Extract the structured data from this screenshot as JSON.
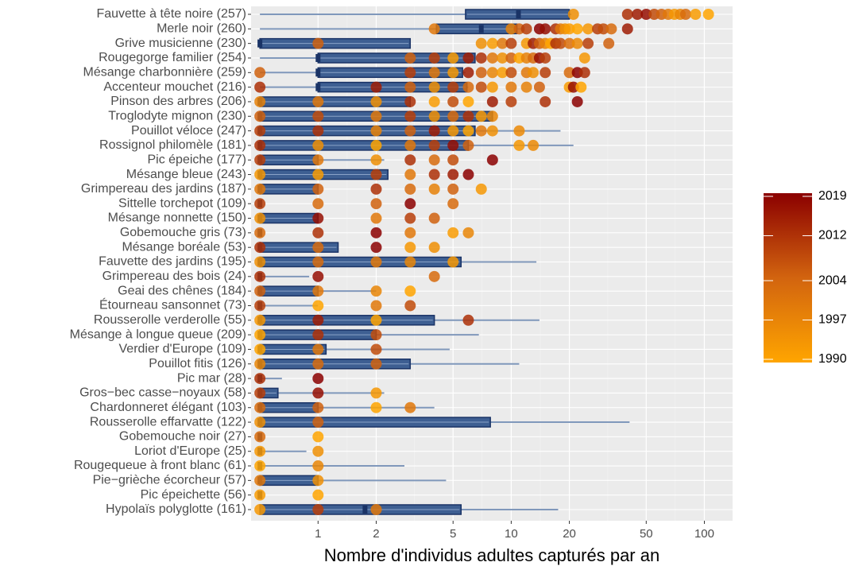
{
  "chart_data": {
    "type": "boxplot",
    "xlabel": "Nombre d'individus adultes capturés par an",
    "log_x": true,
    "grid": true,
    "xlim": [
      0.45,
      140
    ],
    "xticks": [
      1,
      2,
      5,
      10,
      20,
      50,
      100
    ],
    "colorbar": {
      "lim": [
        1990,
        2019
      ],
      "ticks": [
        1990,
        1997,
        2004,
        2012,
        2019
      ],
      "colors": [
        "#ffa500",
        "#d2640f",
        "#8b0000"
      ]
    },
    "box_color": "#3e5f92",
    "box_edge": "#1a3366",
    "whisker_color": "#8098bb",
    "categories": [
      "Fauvette à tête noire (257)",
      "Merle noir (260)",
      "Grive musicienne (230)",
      "Rougegorge familier (254)",
      "Mésange charbonnière (259)",
      "Accenteur mouchet (216)",
      "Pinson des arbres (206)",
      "Troglodyte mignon (230)",
      "Pouillot véloce (247)",
      "Rossignol philomèle (181)",
      "Pic épeiche (177)",
      "Mésange bleue (243)",
      "Grimpereau des jardins (187)",
      "Sittelle torchepot (109)",
      "Mésange nonnette (150)",
      "Gobemouche gris (73)",
      "Mésange boréale (53)",
      "Fauvette des jardins (195)",
      "Grimpereau des bois (24)",
      "Geai des chênes (184)",
      "Étourneau sansonnet (73)",
      "Rousserolle verderolle (55)",
      "Mésange à longue queue (209)",
      "Verdier d'Europe (109)",
      "Pouillot fitis (126)",
      "Pic mar (28)",
      "Gros−bec casse−noyaux (58)",
      "Chardonneret élégant (103)",
      "Rousserolle effarvatte (122)",
      "Gobemouche noir (27)",
      "Loriot d'Europe (25)",
      "Rougequeue à front blanc (61)",
      "Pie−grièche écorcheur (57)",
      "Pic épeichette (56)",
      "Hypolaïs polyglotte (161)"
    ],
    "species": [
      {
        "box": [
          0.5,
          5.8,
          10.9,
          20,
          20.5
        ],
        "points": [
          [
            21,
            1995
          ],
          [
            40,
            2012
          ],
          [
            45,
            2015
          ],
          [
            50,
            2017
          ],
          [
            55,
            2008
          ],
          [
            60,
            2005
          ],
          [
            65,
            2000
          ],
          [
            70,
            1993
          ],
          [
            75,
            1997
          ],
          [
            80,
            2003
          ],
          [
            90,
            1992
          ],
          [
            105,
            1990
          ]
        ]
      },
      {
        "box": [
          0.5,
          4.1,
          7,
          10.7,
          11.5
        ],
        "points": [
          [
            4,
            2000
          ],
          [
            10,
            1998
          ],
          [
            11,
            2005
          ],
          [
            12,
            2010
          ],
          [
            14,
            2019
          ],
          [
            15,
            2017
          ],
          [
            17,
            2012
          ],
          [
            18,
            2000
          ],
          [
            19,
            1995
          ],
          [
            20,
            1992
          ],
          [
            22,
            1990
          ],
          [
            25,
            1993
          ],
          [
            28,
            2010
          ],
          [
            30,
            2008
          ],
          [
            33,
            2003
          ],
          [
            40,
            2015
          ]
        ]
      },
      {
        "box": [
          0.5,
          0.5,
          0.5,
          3,
          3
        ],
        "points": [
          [
            1,
            2005
          ],
          [
            7,
            1995
          ],
          [
            8,
            1992
          ],
          [
            9,
            2000
          ],
          [
            10,
            2010
          ],
          [
            12,
            1993
          ],
          [
            13,
            2015
          ],
          [
            14,
            2005
          ],
          [
            15,
            1998
          ],
          [
            16,
            1990
          ],
          [
            17,
            2012
          ],
          [
            18,
            2008
          ],
          [
            20,
            2002
          ],
          [
            22,
            1996
          ],
          [
            25,
            2010
          ],
          [
            32,
            2005
          ]
        ]
      },
      {
        "box": [
          0.5,
          1,
          1,
          6.5,
          6.5
        ],
        "points": [
          [
            3,
            2005
          ],
          [
            4,
            2010
          ],
          [
            5,
            1992
          ],
          [
            6,
            2015
          ],
          [
            7,
            2012
          ],
          [
            8,
            2000
          ],
          [
            9,
            1995
          ],
          [
            10,
            2005
          ],
          [
            11,
            1990
          ],
          [
            12,
            1998
          ],
          [
            13,
            2003
          ],
          [
            14,
            2017
          ],
          [
            15,
            2010
          ],
          [
            24,
            1993
          ]
        ]
      },
      {
        "box": [
          0.5,
          1,
          1,
          5.6,
          5.8
        ],
        "points": [
          [
            0.5,
            2005
          ],
          [
            3,
            2010
          ],
          [
            4,
            2000
          ],
          [
            5,
            1993
          ],
          [
            6,
            2015
          ],
          [
            7,
            2005
          ],
          [
            8,
            1997
          ],
          [
            9,
            1992
          ],
          [
            10,
            2008
          ],
          [
            12,
            2000
          ],
          [
            13,
            1995
          ],
          [
            15,
            2010
          ],
          [
            20,
            2003
          ],
          [
            22,
            2019
          ],
          [
            24,
            2012
          ]
        ]
      },
      {
        "box": [
          0.5,
          1,
          1,
          5.9,
          6
        ],
        "points": [
          [
            0.5,
            2012
          ],
          [
            2,
            2015
          ],
          [
            3,
            2005
          ],
          [
            4,
            1995
          ],
          [
            5,
            2010
          ],
          [
            6,
            2003
          ],
          [
            7,
            2008
          ],
          [
            8,
            1993
          ],
          [
            10,
            2000
          ],
          [
            12,
            1998
          ],
          [
            14,
            2005
          ],
          [
            20,
            1992
          ],
          [
            21,
            2017
          ],
          [
            23,
            1990
          ]
        ]
      },
      {
        "box": [
          0.5,
          0.5,
          0.5,
          3,
          3
        ],
        "points": [
          [
            0.5,
            1998
          ],
          [
            1,
            2000
          ],
          [
            2,
            1995
          ],
          [
            3,
            2012
          ],
          [
            4,
            1992
          ],
          [
            5,
            2008
          ],
          [
            6,
            1990
          ],
          [
            8,
            2015
          ],
          [
            10,
            2010
          ],
          [
            15,
            2012
          ],
          [
            22,
            2019
          ]
        ]
      },
      {
        "box": [
          0.5,
          0.5,
          0.5,
          8,
          8
        ],
        "points": [
          [
            0.5,
            2005
          ],
          [
            1,
            2008
          ],
          [
            2,
            2000
          ],
          [
            3,
            2010
          ],
          [
            4,
            1995
          ],
          [
            5,
            2003
          ],
          [
            6,
            2012
          ],
          [
            7,
            1993
          ],
          [
            8,
            1997
          ]
        ]
      },
      {
        "box": [
          0.5,
          0.5,
          0.5,
          6.5,
          18
        ],
        "points": [
          [
            0.5,
            2010
          ],
          [
            1,
            2012
          ],
          [
            2,
            1998
          ],
          [
            3,
            2005
          ],
          [
            4,
            2015
          ],
          [
            5,
            1993
          ],
          [
            6,
            1990
          ],
          [
            7,
            2000
          ],
          [
            8,
            1995
          ],
          [
            11,
            1996
          ]
        ]
      },
      {
        "box": [
          0.5,
          0.5,
          0.5,
          6,
          21
        ],
        "points": [
          [
            0.5,
            2012
          ],
          [
            1,
            1995
          ],
          [
            2,
            1990
          ],
          [
            3,
            2000
          ],
          [
            4,
            2010
          ],
          [
            5,
            2017
          ],
          [
            6,
            2005
          ],
          [
            11,
            1993
          ],
          [
            13,
            1996
          ]
        ]
      },
      {
        "box": [
          0.5,
          0.5,
          0.5,
          1,
          2.2
        ],
        "points": [
          [
            0.5,
            2010
          ],
          [
            1,
            2000
          ],
          [
            2,
            1995
          ],
          [
            3,
            2012
          ],
          [
            4,
            2003
          ],
          [
            5,
            2008
          ],
          [
            8,
            2019
          ]
        ]
      },
      {
        "box": [
          0.5,
          0.5,
          0.5,
          2.3,
          2.3
        ],
        "points": [
          [
            0.5,
            1993
          ],
          [
            1,
            1992
          ],
          [
            2,
            2010
          ],
          [
            3,
            2000
          ],
          [
            4,
            2012
          ],
          [
            5,
            2015
          ],
          [
            6,
            2019
          ]
        ]
      },
      {
        "box": [
          0.5,
          0.5,
          0.5,
          1,
          1
        ],
        "points": [
          [
            0.5,
            2000
          ],
          [
            1,
            2005
          ],
          [
            2,
            2012
          ],
          [
            3,
            2003
          ],
          [
            4,
            1998
          ],
          [
            5,
            2005
          ],
          [
            7,
            1993
          ]
        ]
      },
      {
        "box": [
          0.5,
          0.5,
          0.5,
          0.5,
          0.5
        ],
        "points": [
          [
            0.5,
            2010
          ],
          [
            1,
            2003
          ],
          [
            2,
            2005
          ],
          [
            3,
            2019
          ],
          [
            5,
            2003
          ]
        ]
      },
      {
        "box": [
          0.5,
          0.5,
          0.5,
          1,
          1
        ],
        "points": [
          [
            0.5,
            1995
          ],
          [
            1,
            2017
          ],
          [
            2,
            2000
          ],
          [
            3,
            2010
          ],
          [
            4,
            2005
          ]
        ]
      },
      {
        "box": [
          0.5,
          0.5,
          0.5,
          0.5,
          0.5
        ],
        "points": [
          [
            0.5,
            2003
          ],
          [
            1,
            2012
          ],
          [
            2,
            2019
          ],
          [
            3,
            2000
          ],
          [
            5,
            1992
          ],
          [
            6,
            1997
          ]
        ]
      },
      {
        "box": [
          0.5,
          0.5,
          0.5,
          1.27,
          1.27
        ],
        "points": [
          [
            0.5,
            2012
          ],
          [
            1,
            2003
          ],
          [
            2,
            2019
          ],
          [
            3,
            1993
          ],
          [
            4,
            1995
          ]
        ]
      },
      {
        "box": [
          0.5,
          0.5,
          0.5,
          5.5,
          13.5
        ],
        "points": [
          [
            0.5,
            1995
          ],
          [
            1,
            2003
          ],
          [
            2,
            2000
          ],
          [
            3,
            1997
          ],
          [
            5,
            1993
          ]
        ]
      },
      {
        "box": [
          0.5,
          0.5,
          0.5,
          0.5,
          0.9
        ],
        "points": [
          [
            0.5,
            2012
          ],
          [
            1,
            2017
          ],
          [
            4,
            2003
          ]
        ]
      },
      {
        "box": [
          0.5,
          0.5,
          0.5,
          1,
          2
        ],
        "points": [
          [
            0.5,
            2005
          ],
          [
            1,
            2000
          ],
          [
            2,
            1997
          ],
          [
            3,
            1990
          ]
        ]
      },
      {
        "box": [
          0.5,
          0.5,
          0.5,
          0.5,
          1
        ],
        "points": [
          [
            0.5,
            2010
          ],
          [
            1,
            1990
          ],
          [
            2,
            2000
          ],
          [
            3,
            2008
          ]
        ]
      },
      {
        "box": [
          0.5,
          0.5,
          0.5,
          4,
          14
        ],
        "points": [
          [
            0.5,
            1993
          ],
          [
            1,
            2015
          ],
          [
            2,
            1990
          ],
          [
            6,
            2012
          ]
        ]
      },
      {
        "box": [
          0.5,
          0.5,
          0.5,
          2,
          6.8
        ],
        "points": [
          [
            0.5,
            1990
          ],
          [
            1,
            2012
          ],
          [
            2,
            2008
          ]
        ]
      },
      {
        "box": [
          0.5,
          0.5,
          0.5,
          1.1,
          4.8
        ],
        "points": [
          [
            0.5,
            1990
          ],
          [
            1,
            2000
          ],
          [
            2,
            2008
          ]
        ]
      },
      {
        "box": [
          0.5,
          0.5,
          0.5,
          3,
          11
        ],
        "points": [
          [
            0.5,
            1997
          ],
          [
            1,
            2003
          ],
          [
            2,
            2005
          ]
        ]
      },
      {
        "box": [
          0.5,
          0.5,
          0.5,
          0.5,
          0.65
        ],
        "points": [
          [
            0.5,
            2012
          ],
          [
            1,
            2019
          ]
        ]
      },
      {
        "box": [
          0.5,
          0.5,
          0.5,
          0.62,
          2.2
        ],
        "points": [
          [
            0.5,
            2010
          ],
          [
            1,
            2017
          ],
          [
            2,
            1993
          ]
        ]
      },
      {
        "box": [
          0.5,
          0.5,
          0.5,
          1,
          4
        ],
        "points": [
          [
            0.5,
            2003
          ],
          [
            1,
            2005
          ],
          [
            2,
            1990
          ],
          [
            3,
            2000
          ]
        ]
      },
      {
        "box": [
          0.5,
          0.5,
          0.5,
          7.8,
          41
        ],
        "points": [
          [
            0.5,
            1995
          ],
          [
            1,
            2005
          ]
        ]
      },
      {
        "box": [
          0.5,
          0.5,
          0.5,
          0.5,
          0.5
        ],
        "points": [
          [
            0.5,
            2003
          ],
          [
            1,
            1990
          ]
        ]
      },
      {
        "box": [
          0.5,
          0.5,
          0.5,
          0.5,
          0.87
        ],
        "points": [
          [
            0.5,
            1993
          ],
          [
            1,
            1995
          ]
        ]
      },
      {
        "box": [
          0.5,
          0.5,
          0.5,
          0.5,
          2.8
        ],
        "points": [
          [
            0.5,
            1990
          ],
          [
            1,
            1997
          ]
        ]
      },
      {
        "box": [
          0.5,
          0.5,
          0.5,
          1,
          4.6
        ],
        "points": [
          [
            0.5,
            2000
          ],
          [
            1,
            1995
          ]
        ]
      },
      {
        "box": [
          0.5,
          0.5,
          0.5,
          0.5,
          0.5
        ],
        "points": [
          [
            0.5,
            1992
          ],
          [
            1,
            1990
          ]
        ]
      },
      {
        "box": [
          0.5,
          0.5,
          1.75,
          5.5,
          17.5
        ],
        "points": [
          [
            0.5,
            1993
          ],
          [
            1,
            2010
          ],
          [
            2,
            2000
          ]
        ]
      }
    ]
  }
}
